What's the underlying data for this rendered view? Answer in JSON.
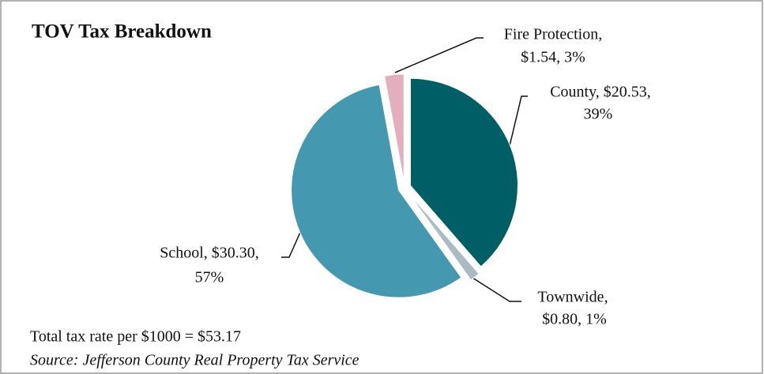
{
  "chart_data": {
    "type": "pie",
    "title": "TOV Tax Breakdown",
    "values": [
      20.53,
      0.8,
      30.3,
      1.54
    ],
    "value_labels": [
      [
        "County, $20.53,",
        "39%"
      ],
      [
        "Townwide,",
        "$0.80, 1%"
      ],
      [
        "School, $30.30,",
        "57%"
      ],
      [
        "Fire Protection,",
        "$1.54, 3%"
      ]
    ],
    "colors": [
      "#005f66",
      "#a9bcc4",
      "#4499b0",
      "#e3aebd"
    ],
    "note": "Total tax rate per $1000 = $53.17",
    "source": "Source: Jefferson County Real Property Tax Service"
  }
}
